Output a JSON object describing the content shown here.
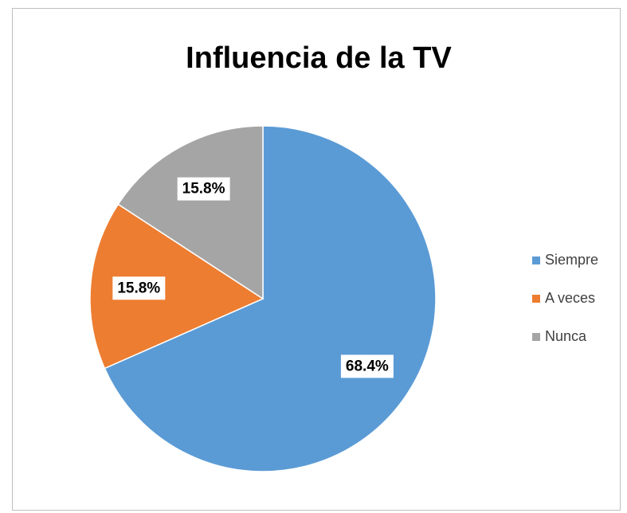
{
  "chart_data": {
    "type": "pie",
    "title": "Influencia de la TV",
    "categories": [
      "Siempre",
      "A veces",
      "Nunca"
    ],
    "values": [
      68.4,
      15.8,
      15.8
    ],
    "value_labels": [
      "68.4%",
      "15.8%",
      "15.8%"
    ],
    "colors": [
      "#5b9bd5",
      "#ed7d31",
      "#a5a5a5"
    ],
    "legend": "right"
  }
}
